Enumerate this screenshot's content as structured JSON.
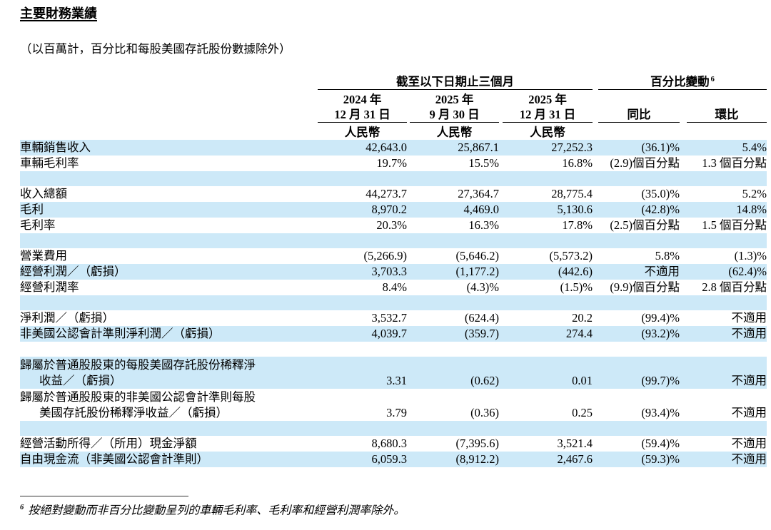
{
  "header": {
    "title": "主要財務業績",
    "subtitle": "（以百萬計，百分比和每股美國存託股份數據除外）"
  },
  "colors": {
    "row_highlight": "#CDE9F8"
  },
  "table": {
    "period_group": {
      "label": "截至以下日期止三個月"
    },
    "change_group": {
      "label": "百分比變動",
      "footnote_ref": "6"
    },
    "date_columns": [
      {
        "line1": "2024 年",
        "line2": "12 月 31 日",
        "currency": "人民幣"
      },
      {
        "line1": "2025 年",
        "line2": "9 月 30 日",
        "currency": "人民幣"
      },
      {
        "line1": "2025 年",
        "line2": "12 月 31 日",
        "currency": "人民幣"
      }
    ],
    "change_columns": [
      {
        "label": "同比"
      },
      {
        "label": "環比"
      }
    ],
    "rows": [
      {
        "bg": "blue",
        "label": "車輛銷售收入",
        "values": [
          "42,643.0",
          "25,867.1",
          "27,252.3",
          "(36.1)%",
          "5.4%"
        ]
      },
      {
        "bg": "white",
        "label": "車輛毛利率",
        "values": [
          "19.7%",
          "15.5%",
          "16.8%",
          "(2.9)個百分點",
          "1.3 個百分點"
        ]
      },
      {
        "empty": true,
        "bg": "blue"
      },
      {
        "bg": "white",
        "label": "收入總額",
        "values": [
          "44,273.7",
          "27,364.7",
          "28,775.4",
          "(35.0)%",
          "5.2%"
        ]
      },
      {
        "bg": "blue",
        "label": "毛利",
        "values": [
          "8,970.2",
          "4,469.0",
          "5,130.6",
          "(42.8)%",
          "14.8%"
        ]
      },
      {
        "bg": "white",
        "label": "毛利率",
        "values": [
          "20.3%",
          "16.3%",
          "17.8%",
          "(2.5)個百分點",
          "1.5 個百分點"
        ]
      },
      {
        "empty": true,
        "bg": "blue"
      },
      {
        "bg": "white",
        "label": "營業費用",
        "values": [
          "(5,266.9)",
          "(5,646.2)",
          "(5,573.2)",
          "5.8%",
          "(1.3)%"
        ]
      },
      {
        "bg": "blue",
        "label": "經營利潤／（虧損）",
        "values": [
          "3,703.3",
          "(1,177.2)",
          "(442.6)",
          "不適用",
          "(62.4)%"
        ]
      },
      {
        "bg": "white",
        "label": "經營利潤率",
        "values": [
          "8.4%",
          "(4.3)%",
          "(1.5)%",
          "(9.9)個百分點",
          "2.8 個百分點"
        ]
      },
      {
        "empty": true,
        "bg": "blue"
      },
      {
        "bg": "white",
        "label": "淨利潤／（虧損）",
        "values": [
          "3,532.7",
          "(624.4)",
          "20.2",
          "(99.4)%",
          "不適用"
        ]
      },
      {
        "bg": "blue",
        "label": "非美國公認會計準則淨利潤／（虧損）",
        "values": [
          "4,039.7",
          "(359.7)",
          "274.4",
          "(93.2)%",
          "不適用"
        ]
      },
      {
        "empty": true,
        "bg": "white"
      },
      {
        "bg": "blue",
        "label": "歸屬於普通股股東的每股美國存託股份稀釋淨",
        "label2": "收益／（虧損）",
        "values": [
          "3.31",
          "(0.62)",
          "0.01",
          "(99.7)%",
          "不適用"
        ]
      },
      {
        "bg": "white",
        "label": "歸屬於普通股股東的非美國公認會計準則每股",
        "label2": "美國存託股份稀釋淨收益／（虧損）",
        "values": [
          "3.79",
          "(0.36)",
          "0.25",
          "(93.4)%",
          "不適用"
        ]
      },
      {
        "empty": true,
        "bg": "blue"
      },
      {
        "bg": "white",
        "label": "經營活動所得／（所用）現金淨額",
        "values": [
          "8,680.3",
          "(7,395.6)",
          "3,521.4",
          "(59.4)%",
          "不適用"
        ]
      },
      {
        "bg": "blue",
        "label": "自由現金流（非美國公認會計準則）",
        "values": [
          "6,059.3",
          "(8,912.2)",
          "2,467.6",
          "(59.3)%",
          "不適用"
        ]
      }
    ]
  },
  "footnote": {
    "marker": "6",
    "text": "按絕對變動而非百分比變動呈列的車輛毛利率、毛利率和經營利潤率除外。"
  }
}
